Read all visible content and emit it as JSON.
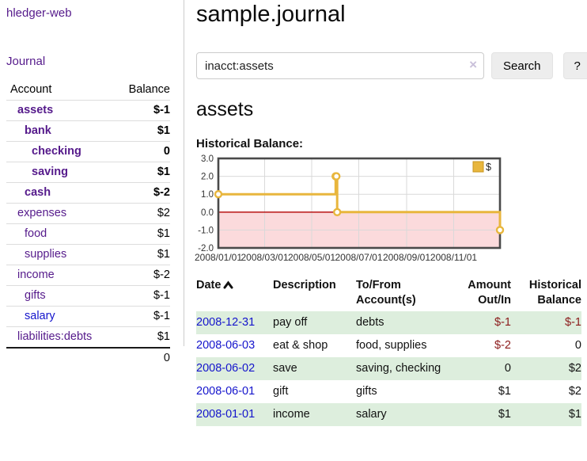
{
  "brand": "hledger-web",
  "colors": {
    "link_purple": "#551a8b",
    "link_blue": "#1414cc",
    "negative_strong": "#8b1a1a",
    "negative_soft": "#bb6f6f",
    "row_stripe_green": "#ddeedd"
  },
  "sidebar": {
    "journal_link": "Journal",
    "headers": {
      "account": "Account",
      "balance": "Balance"
    },
    "accounts": [
      {
        "name": "assets",
        "balance": "$-1",
        "level": 1,
        "bold": true,
        "neg": "strong",
        "link": "purple"
      },
      {
        "name": "bank",
        "balance": "$1",
        "level": 2,
        "bold": true,
        "neg": null,
        "link": "purple"
      },
      {
        "name": "checking",
        "balance": "0",
        "level": 3,
        "bold": true,
        "neg": null,
        "link": "purple"
      },
      {
        "name": "saving",
        "balance": "$1",
        "level": 3,
        "bold": true,
        "neg": null,
        "link": "purple"
      },
      {
        "name": "cash",
        "balance": "$-2",
        "level": 2,
        "bold": true,
        "neg": "strong",
        "link": "purple"
      },
      {
        "name": "expenses",
        "balance": "$2",
        "level": 1,
        "bold": false,
        "neg": null,
        "link": "purple"
      },
      {
        "name": "food",
        "balance": "$1",
        "level": 2,
        "bold": false,
        "neg": null,
        "link": "purple"
      },
      {
        "name": "supplies",
        "balance": "$1",
        "level": 2,
        "bold": false,
        "neg": null,
        "link": "purple"
      },
      {
        "name": "income",
        "balance": "$-2",
        "level": 1,
        "bold": false,
        "neg": "soft",
        "link": "purple"
      },
      {
        "name": "gifts",
        "balance": "$-1",
        "level": 2,
        "bold": false,
        "neg": "soft",
        "link": "purple"
      },
      {
        "name": "salary",
        "balance": "$-1",
        "level": 2,
        "bold": false,
        "neg": "soft",
        "link": "blue"
      },
      {
        "name": "liabilities:debts",
        "balance": "$1",
        "level": 1,
        "bold": false,
        "neg": null,
        "link": "purple"
      }
    ],
    "total": "0"
  },
  "main": {
    "title": "sample.journal",
    "search": {
      "value": "inacct:assets",
      "clear_glyph": "×",
      "search_button": "Search",
      "help_button": "?"
    },
    "account_heading": "assets",
    "chart_label": "Historical Balance:"
  },
  "chart_data": {
    "type": "line",
    "step": true,
    "title": "Historical Balance",
    "series": [
      {
        "name": "$",
        "points": [
          [
            "2008-01-01",
            1
          ],
          [
            "2008-06-01",
            2
          ],
          [
            "2008-06-02",
            2
          ],
          [
            "2008-06-03",
            0
          ],
          [
            "2008-12-31",
            -1
          ]
        ]
      }
    ],
    "x_range": [
      "2008-01-01",
      "2008-12-31"
    ],
    "ylim": [
      -2,
      3
    ],
    "y_ticks": [
      3.0,
      2.0,
      1.0,
      0.0,
      -1.0,
      -2.0
    ],
    "x_tick_labels": [
      "2008/01/01",
      "2008/03/01",
      "2008/05/01",
      "2008/07/01",
      "2008/09/01",
      "2008/11/01"
    ],
    "legend": {
      "label": "$",
      "position": "top-right"
    },
    "grid": true,
    "negative_region_shaded": true,
    "colors": {
      "line": "#e8b63d",
      "marker_fill": "#ffffff",
      "negative_fill": "#fbdadc",
      "zero_line": "#b30000",
      "grid": "#d9d9d9",
      "border": "#4a4a4a",
      "legend_border": "#c8961e"
    }
  },
  "transactions": {
    "headers": {
      "date": "Date",
      "description": "Description",
      "tofrom": "To/From Account(s)",
      "amount": "Amount Out/In",
      "balance": "Historical Balance"
    },
    "sort": {
      "column": "date",
      "direction": "ascending"
    },
    "rows": [
      {
        "date": "2008-12-31",
        "description": "pay off",
        "accounts": "debts",
        "amount": "$-1",
        "balance": "$-1"
      },
      {
        "date": "2008-06-03",
        "description": "eat & shop",
        "accounts": "food, supplies",
        "amount": "$-2",
        "balance": "0"
      },
      {
        "date": "2008-06-02",
        "description": "save",
        "accounts": "saving, checking",
        "amount": "0",
        "balance": "$2"
      },
      {
        "date": "2008-06-01",
        "description": "gift",
        "accounts": "gifts",
        "amount": "$1",
        "balance": "$2"
      },
      {
        "date": "2008-01-01",
        "description": "income",
        "accounts": "salary",
        "amount": "$1",
        "balance": "$1"
      }
    ]
  },
  "icons": {
    "sort_ascending": "chevron-up",
    "clear_search": "×",
    "help": "?"
  }
}
